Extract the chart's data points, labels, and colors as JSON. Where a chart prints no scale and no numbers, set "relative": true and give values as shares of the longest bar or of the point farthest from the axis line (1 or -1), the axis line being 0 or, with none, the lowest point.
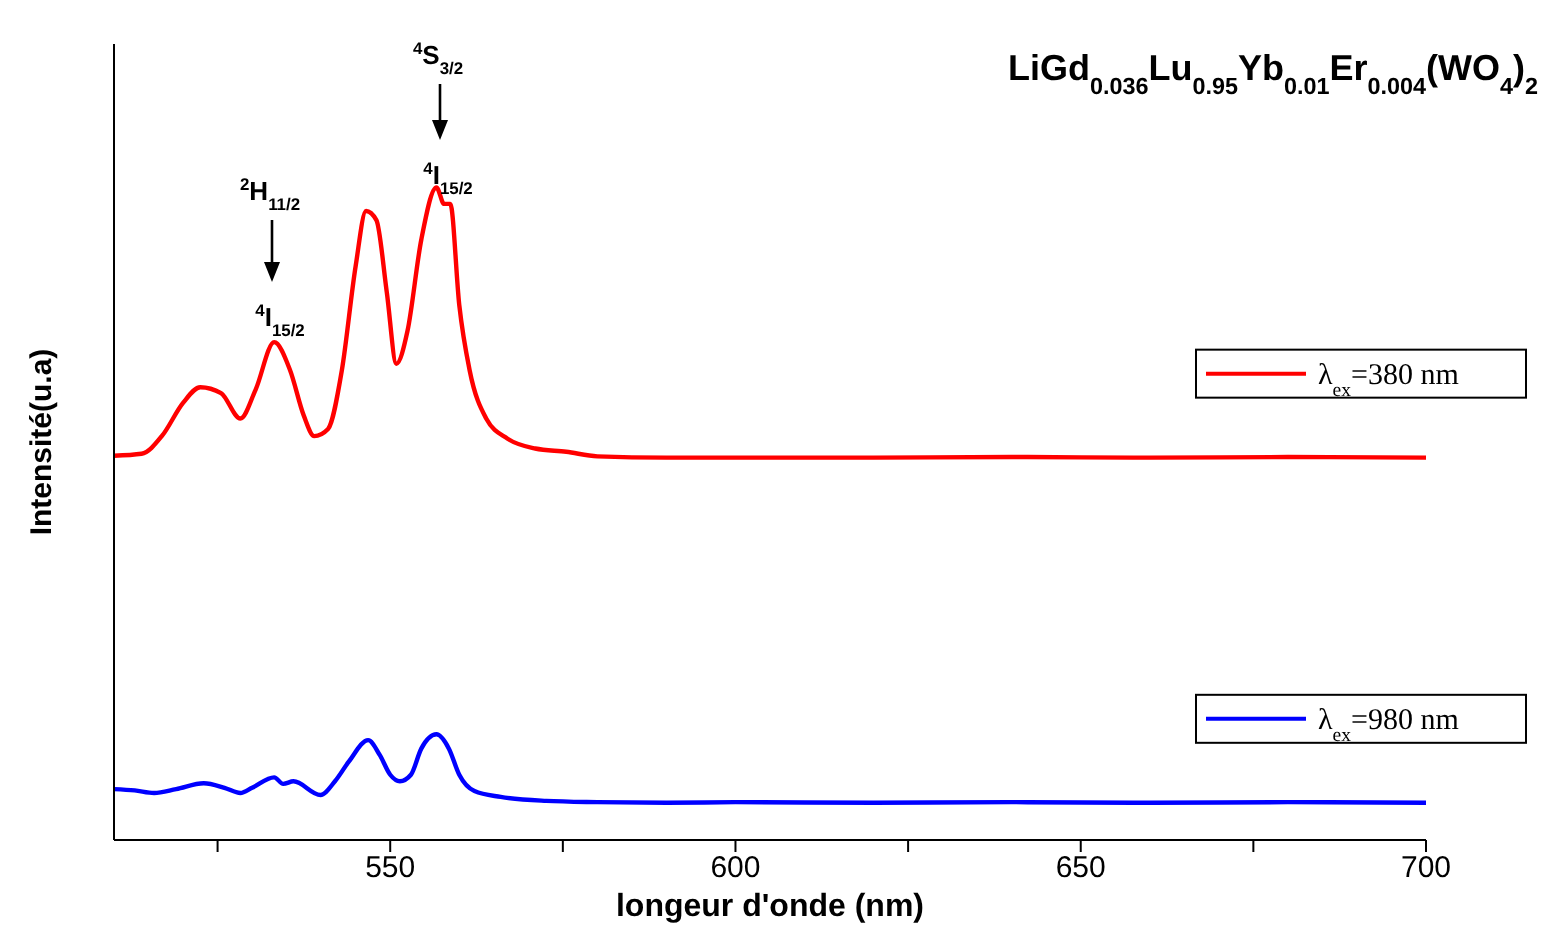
{
  "chart_data": {
    "type": "line",
    "title": "LiGd$_{0.036}$Lu$_{0.95}$Yb$_{0.01}$Er$_{0.004}$(WO$_{4}$)$_{2}$",
    "xlabel": "longeur d'onde (nm)",
    "ylabel": "Intensité(u.a)",
    "relative": true,
    "legend": "right",
    "grid": false,
    "marker": "none",
    "line_style": "solid",
    "xlim": [
      510,
      700
    ],
    "xticks": [
      {
        "value": 525,
        "label": null
      },
      550,
      {
        "value": 575,
        "label": null
      },
      600,
      {
        "value": 625,
        "label": null
      },
      650,
      {
        "value": 675,
        "label": null
      },
      700
    ],
    "annotations": [
      "$^{2}$H$_{11/2}$",
      "$^{4}$I$_{15/2}$",
      "$^{4}$S$_{3/2}$",
      "$^{4}$I$_{15/2}$"
    ],
    "series": [
      {
        "name": "λ$_{ex}$=380 nm",
        "color": "#ff0000",
        "x": [
          510,
          514,
          517,
          520,
          522.5,
          525.5,
          528.3,
          530.5,
          533.2,
          535.5,
          537.5,
          539,
          541,
          543,
          545,
          546.5,
          548,
          549.5,
          550.9,
          552.5,
          554.5,
          556.7,
          557.8,
          558.7,
          560,
          561.5,
          563.9,
          567,
          571,
          575.5,
          580,
          590,
          600,
          620,
          640,
          660,
          680,
          700
        ],
        "values": [
          0.589,
          0.592,
          0.62,
          0.67,
          0.694,
          0.685,
          0.646,
          0.69,
          0.763,
          0.72,
          0.65,
          0.619,
          0.63,
          0.72,
          0.88,
          0.964,
          0.95,
          0.84,
          0.73,
          0.78,
          0.92,
          1.0,
          0.975,
          0.975,
          0.82,
          0.72,
          0.646,
          0.615,
          0.6,
          0.595,
          0.588,
          0.586,
          0.586,
          0.586,
          0.587,
          0.586,
          0.587,
          0.586
        ]
      },
      {
        "name": "λ$_{ex}$=980 nm",
        "color": "#0000ff",
        "x": [
          510,
          513,
          515.8,
          519,
          523,
          526,
          528.3,
          530,
          533.2,
          534.5,
          536,
          539.9,
          542,
          544,
          546.8,
          548.5,
          550,
          551.4,
          553,
          554.5,
          556.7,
          558.5,
          560,
          562.2,
          566,
          572.6,
          580,
          590,
          600,
          620,
          640,
          660,
          680,
          700
        ],
        "values": [
          0.078,
          0.076,
          0.072,
          0.078,
          0.087,
          0.08,
          0.072,
          0.08,
          0.096,
          0.086,
          0.09,
          0.069,
          0.09,
          0.12,
          0.153,
          0.13,
          0.1,
          0.09,
          0.1,
          0.14,
          0.162,
          0.14,
          0.1,
          0.075,
          0.066,
          0.06,
          0.058,
          0.057,
          0.058,
          0.057,
          0.058,
          0.057,
          0.058,
          0.057
        ]
      }
    ]
  }
}
